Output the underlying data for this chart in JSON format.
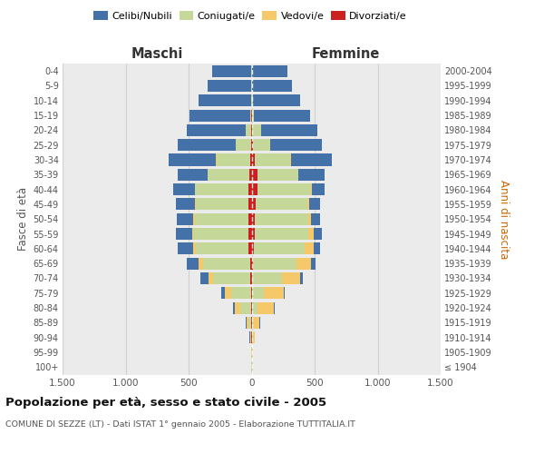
{
  "age_groups": [
    "100+",
    "95-99",
    "90-94",
    "85-89",
    "80-84",
    "75-79",
    "70-74",
    "65-69",
    "60-64",
    "55-59",
    "50-54",
    "45-49",
    "40-44",
    "35-39",
    "30-34",
    "25-29",
    "20-24",
    "15-19",
    "10-14",
    "5-9",
    "0-4"
  ],
  "birth_years": [
    "≤ 1904",
    "1905-1909",
    "1910-1914",
    "1915-1919",
    "1920-1924",
    "1925-1929",
    "1930-1934",
    "1935-1939",
    "1940-1944",
    "1945-1949",
    "1950-1954",
    "1955-1959",
    "1960-1964",
    "1965-1969",
    "1970-1974",
    "1975-1979",
    "1980-1984",
    "1985-1989",
    "1990-1994",
    "1995-1999",
    "2000-2004"
  ],
  "maschi": {
    "divorziati": [
      0,
      0,
      1,
      1,
      2,
      4,
      8,
      12,
      22,
      26,
      28,
      28,
      25,
      18,
      10,
      4,
      2,
      1,
      0,
      0,
      0
    ],
    "coniugati": [
      1,
      3,
      8,
      25,
      90,
      160,
      295,
      375,
      420,
      435,
      425,
      415,
      425,
      330,
      270,
      120,
      45,
      12,
      4,
      2,
      1
    ],
    "vedovi": [
      0,
      1,
      5,
      14,
      38,
      48,
      42,
      32,
      22,
      12,
      8,
      4,
      2,
      1,
      1,
      0,
      0,
      0,
      0,
      0,
      0
    ],
    "celibi": [
      0,
      2,
      3,
      5,
      18,
      28,
      60,
      95,
      125,
      130,
      135,
      155,
      170,
      240,
      380,
      460,
      470,
      480,
      415,
      345,
      315
    ]
  },
  "femmine": {
    "divorziate": [
      0,
      0,
      1,
      1,
      2,
      3,
      5,
      10,
      18,
      22,
      28,
      32,
      48,
      48,
      28,
      14,
      4,
      2,
      1,
      0,
      0
    ],
    "coniugate": [
      0,
      3,
      5,
      10,
      48,
      95,
      235,
      345,
      400,
      430,
      420,
      410,
      420,
      320,
      280,
      135,
      75,
      18,
      7,
      2,
      1
    ],
    "vedove": [
      0,
      5,
      20,
      52,
      125,
      155,
      145,
      115,
      75,
      42,
      22,
      12,
      8,
      4,
      2,
      1,
      0,
      0,
      0,
      0,
      0
    ],
    "nubili": [
      0,
      1,
      2,
      3,
      8,
      12,
      22,
      38,
      52,
      62,
      72,
      90,
      105,
      210,
      330,
      410,
      445,
      445,
      380,
      315,
      280
    ]
  },
  "colors": {
    "celibi": "#4472a8",
    "coniugati": "#c5d89a",
    "vedovi": "#f5c96a",
    "divorziati": "#cc2020"
  },
  "xlim": 1500,
  "title": "Popolazione per età, sesso e stato civile - 2005",
  "subtitle": "COMUNE DI SEZZE (LT) - Dati ISTAT 1° gennaio 2005 - Elaborazione TUTTITALIA.IT",
  "ylabel_left": "Fasce di età",
  "ylabel_right": "Anni di nascita",
  "maschi_label": "Maschi",
  "femmine_label": "Femmine",
  "bg_color": "#ebebeb",
  "grid_color": "#d0d0d0",
  "bar_height": 0.8
}
